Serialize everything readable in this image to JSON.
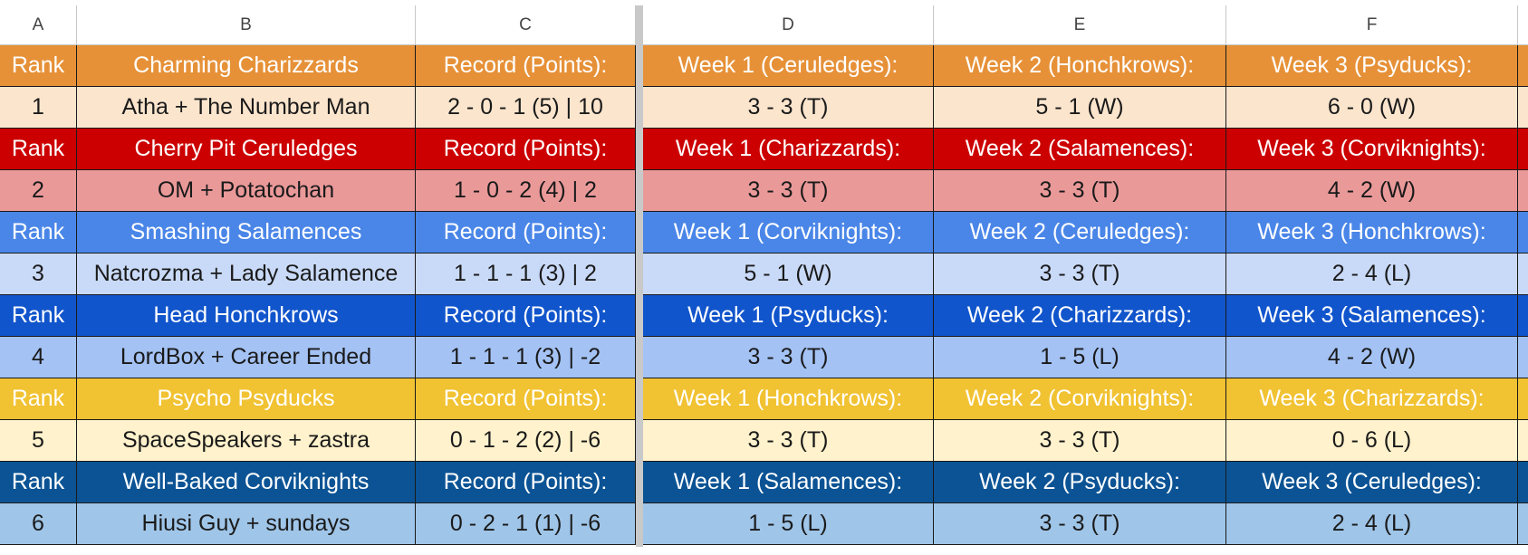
{
  "columns": [
    "A",
    "B",
    "C",
    "D",
    "E",
    "F"
  ],
  "teams": [
    {
      "rank_label": "Rank",
      "team": "Charming Charizzards",
      "record_label": "Record (Points):",
      "week1": "Week 1 (Ceruledges):",
      "week2": "Week 2 (Honchkrows):",
      "week3": "Week 3 (Psyducks):",
      "rank": "1",
      "players": "Atha + The Number Man",
      "record": "2 - 0 - 1 (5) | 10",
      "w1": "3 - 3 (T)",
      "w2": "5 - 1 (W)",
      "w3": "6 - 0 (W)",
      "hdr_color": "#e69138",
      "row_color": "#fce5cd"
    },
    {
      "rank_label": "Rank",
      "team": "Cherry Pit Ceruledges",
      "record_label": "Record (Points):",
      "week1": "Week 1 (Charizzards):",
      "week2": "Week 2 (Salamences):",
      "week3": "Week 3 (Corviknights):",
      "rank": "2",
      "players": "OM + Potatochan",
      "record": "1 - 0 - 2 (4) | 2",
      "w1": "3 - 3 (T)",
      "w2": "3 - 3 (T)",
      "w3": "4 - 2 (W)",
      "hdr_color": "#cc0000",
      "row_color": "#ea9999"
    },
    {
      "rank_label": "Rank",
      "team": "Smashing Salamences",
      "record_label": "Record (Points):",
      "week1": "Week 1 (Corviknights):",
      "week2": "Week 2 (Ceruledges):",
      "week3": "Week 3 (Honchkrows):",
      "rank": "3",
      "players": "Natcrozma + Lady Salamence",
      "record": "1 - 1 - 1 (3) | 2",
      "w1": "5 - 1 (W)",
      "w2": "3 - 3 (T)",
      "w3": "2 - 4 (L)",
      "hdr_color": "#4a86e8",
      "row_color": "#c9daf8"
    },
    {
      "rank_label": "Rank",
      "team": "Head Honchkrows",
      "record_label": "Record (Points):",
      "week1": "Week 1 (Psyducks):",
      "week2": "Week 2 (Charizzards):",
      "week3": "Week 3 (Salamences):",
      "rank": "4",
      "players": "LordBox + Career Ended",
      "record": "1 - 1 - 1 (3) | -2",
      "w1": "3 - 3 (T)",
      "w2": "1 - 5 (L)",
      "w3": "4 - 2 (W)",
      "hdr_color": "#1155cc",
      "row_color": "#a4c2f4"
    },
    {
      "rank_label": "Rank",
      "team": "Psycho Psyducks",
      "record_label": "Record (Points):",
      "week1": "Week 1 (Honchkrows):",
      "week2": "Week 2 (Corviknights):",
      "week3": "Week 3 (Charizzards):",
      "rank": "5",
      "players": "SpaceSpeakers + zastra",
      "record": "0 - 1 - 2 (2) | -6",
      "w1": "3 - 3 (T)",
      "w2": "3 - 3 (T)",
      "w3": "0 - 6 (L)",
      "hdr_color": "#f1c232",
      "row_color": "#fff2cc"
    },
    {
      "rank_label": "Rank",
      "team": "Well-Baked Corviknights",
      "record_label": "Record (Points):",
      "week1": "Week 1 (Salamences):",
      "week2": "Week 2 (Psyducks):",
      "week3": "Week 3 (Ceruledges):",
      "rank": "6",
      "players": "Hiusi Guy + sundays",
      "record": "0 - 2 - 1 (1) | -6",
      "w1": "1 - 5 (L)",
      "w2": "3 - 3 (T)",
      "w3": "2 - 4 (L)",
      "hdr_color": "#0b5394",
      "row_color": "#9fc5e8"
    }
  ]
}
